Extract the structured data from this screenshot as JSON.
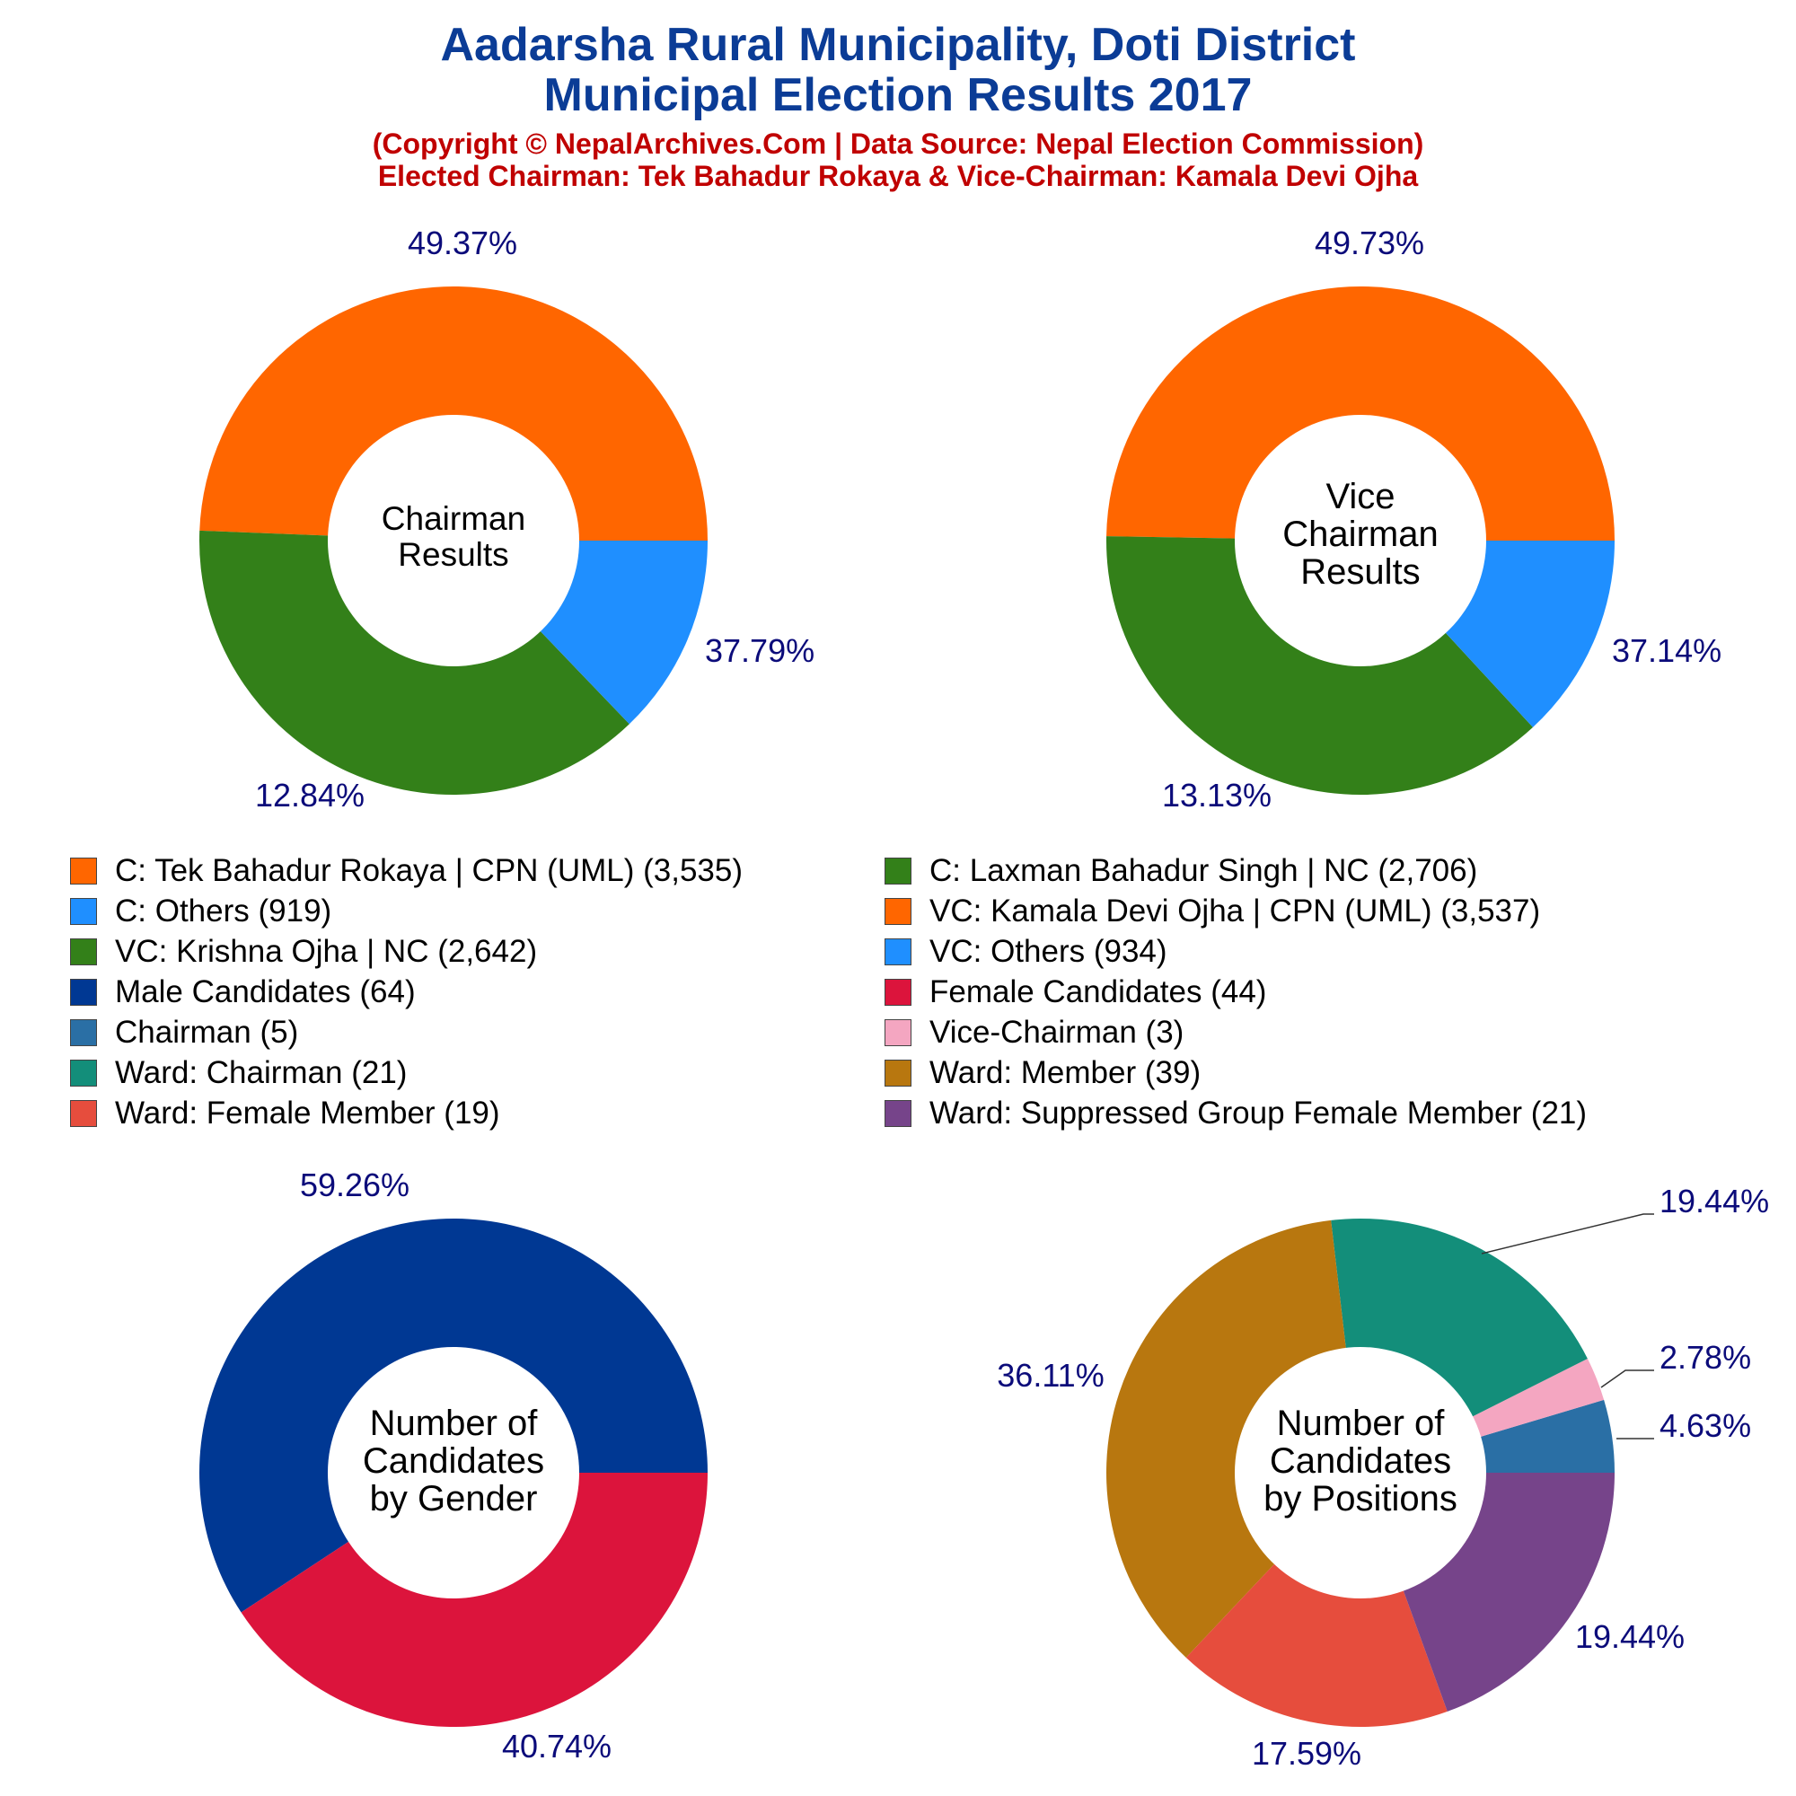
{
  "header": {
    "title_line1": "Aadarsha Rural Municipality, Doti District",
    "title_line2": "Municipal Election Results 2017",
    "subtitle_line1": "(Copyright © NepalArchives.Com | Data Source: Nepal Election Commission)",
    "subtitle_line2": "Elected Chairman: Tek Bahadur Rokaya & Vice-Chairman: Kamala Devi Ojha"
  },
  "colors": {
    "title": "#0B3C96",
    "subtitle": "#C00000",
    "percent_label": "#0B0B7A"
  },
  "legend": {
    "items": [
      {
        "label": "C: Tek Bahadur Rokaya | CPN (UML) (3,535)",
        "color": "#FF6600"
      },
      {
        "label": "C: Laxman Bahadur Singh | NC (2,706)",
        "color": "#338019"
      },
      {
        "label": "C: Others (919)",
        "color": "#1F8FFF"
      },
      {
        "label": "VC: Kamala Devi Ojha | CPN (UML) (3,537)",
        "color": "#FF6600"
      },
      {
        "label": "VC: Krishna Ojha | NC (2,642)",
        "color": "#338019"
      },
      {
        "label": "VC: Others (934)",
        "color": "#1F8FFF"
      },
      {
        "label": "Male Candidates (64)",
        "color": "#003893"
      },
      {
        "label": "Female Candidates (44)",
        "color": "#DC143C"
      },
      {
        "label": "Chairman (5)",
        "color": "#2A6FA5"
      },
      {
        "label": "Vice-Chairman (3)",
        "color": "#F4A6C1"
      },
      {
        "label": "Ward: Chairman (21)",
        "color": "#138E7A"
      },
      {
        "label": "Ward: Member (39)",
        "color": "#B8770F"
      },
      {
        "label": "Ward: Female Member (19)",
        "color": "#E64D3D"
      },
      {
        "label": "Ward: Suppressed Group Female Member (21)",
        "color": "#76448A"
      }
    ]
  },
  "chart_data": [
    {
      "type": "pie",
      "title": "Chairman Results",
      "center_label": [
        "Chairman",
        "Results"
      ],
      "slices": [
        {
          "name": "C: Tek Bahadur Rokaya | CPN (UML)",
          "value": 3535,
          "percent_label": "49.37%",
          "color": "#FF6600"
        },
        {
          "name": "C: Laxman Bahadur Singh | NC",
          "value": 2706,
          "percent_label": "37.79%",
          "color": "#338019"
        },
        {
          "name": "C: Others",
          "value": 919,
          "percent_label": "12.84%",
          "color": "#1F8FFF"
        }
      ]
    },
    {
      "type": "pie",
      "title": "Vice Chairman Results",
      "center_label": [
        "Vice",
        "Chairman",
        "Results"
      ],
      "slices": [
        {
          "name": "VC: Kamala Devi Ojha | CPN (UML)",
          "value": 3537,
          "percent_label": "49.73%",
          "color": "#FF6600"
        },
        {
          "name": "VC: Krishna Ojha | NC",
          "value": 2642,
          "percent_label": "37.14%",
          "color": "#338019"
        },
        {
          "name": "VC: Others",
          "value": 934,
          "percent_label": "13.13%",
          "color": "#1F8FFF"
        }
      ]
    },
    {
      "type": "pie",
      "title": "Number of Candidates by Gender",
      "center_label": [
        "Number of",
        "Candidates",
        "by Gender"
      ],
      "slices": [
        {
          "name": "Male Candidates",
          "value": 64,
          "percent_label": "59.26%",
          "color": "#003893"
        },
        {
          "name": "Female Candidates",
          "value": 44,
          "percent_label": "40.74%",
          "color": "#DC143C"
        }
      ]
    },
    {
      "type": "pie",
      "title": "Number of Candidates by Positions",
      "center_label": [
        "Number of",
        "Candidates",
        "by Positions"
      ],
      "slices": [
        {
          "name": "Chairman",
          "value": 5,
          "percent_label": "4.63%",
          "color": "#2A6FA5"
        },
        {
          "name": "Vice-Chairman",
          "value": 3,
          "percent_label": "2.78%",
          "color": "#F4A6C1"
        },
        {
          "name": "Ward: Chairman",
          "value": 21,
          "percent_label": "19.44%",
          "color": "#138E7A"
        },
        {
          "name": "Ward: Member",
          "value": 39,
          "percent_label": "36.11%",
          "color": "#B8770F"
        },
        {
          "name": "Ward: Female Member",
          "value": 19,
          "percent_label": "17.59%",
          "color": "#E64D3D"
        },
        {
          "name": "Ward: Suppressed Group Female Member",
          "value": 21,
          "percent_label": "19.44%",
          "color": "#76448A"
        }
      ]
    }
  ]
}
